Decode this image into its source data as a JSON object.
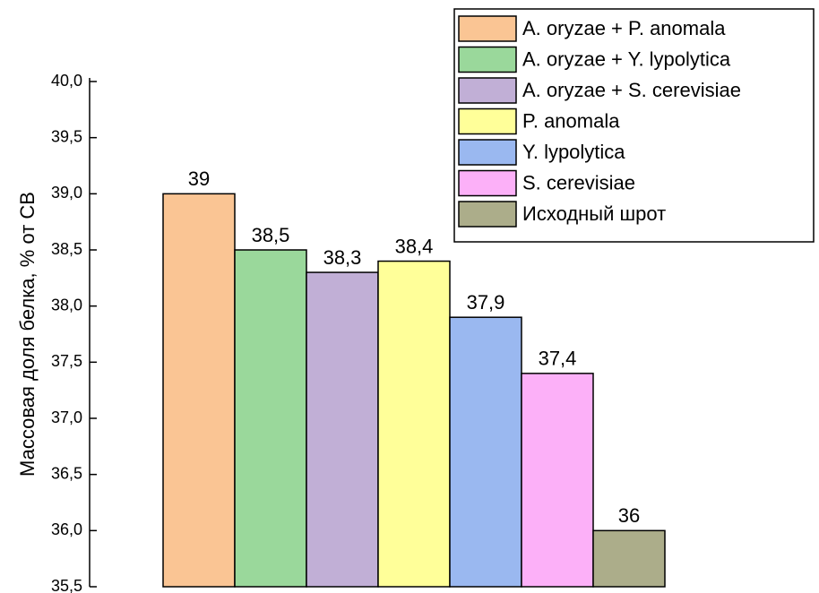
{
  "chart_data": {
    "type": "bar",
    "ylabel": "Массовая доля белка, % от СВ",
    "ylim": [
      35.5,
      40.0
    ],
    "yticks": [
      {
        "value": 35.5,
        "label": "35,5"
      },
      {
        "value": 36.0,
        "label": "36,0"
      },
      {
        "value": 36.5,
        "label": "36,5"
      },
      {
        "value": 37.0,
        "label": "37,0"
      },
      {
        "value": 37.5,
        "label": "37,5"
      },
      {
        "value": 38.0,
        "label": "38,0"
      },
      {
        "value": 38.5,
        "label": "38,5"
      },
      {
        "value": 39.0,
        "label": "39,0"
      },
      {
        "value": 39.5,
        "label": "39,5"
      },
      {
        "value": 40.0,
        "label": "40,0"
      }
    ],
    "legend": "upper right",
    "series": [
      {
        "name": "A. oryzae + P. anomala",
        "color": "#fac594",
        "values": [
          39
        ],
        "value_labels": [
          "39"
        ]
      },
      {
        "name": "A. oryzae + Y. lypolytica",
        "color": "#9ad89b",
        "values": [
          38.5
        ],
        "value_labels": [
          "38,5"
        ]
      },
      {
        "name": "A. oryzae + S. cerevisiae",
        "color": "#c1afd6",
        "values": [
          38.3
        ],
        "value_labels": [
          "38,3"
        ]
      },
      {
        "name": "P. anomala",
        "color": "#ffff99",
        "values": [
          38.4
        ],
        "value_labels": [
          "38,4"
        ]
      },
      {
        "name": "Y. lypolytica",
        "color": "#9ab8f0",
        "values": [
          37.9
        ],
        "value_labels": [
          "37,9"
        ]
      },
      {
        "name": "S. cerevisiae",
        "color": "#fcb0f8",
        "values": [
          37.4
        ],
        "value_labels": [
          "37,4"
        ]
      },
      {
        "name": "Исходный шрот",
        "color": "#acad8a",
        "values": [
          36
        ],
        "value_labels": [
          "36"
        ]
      }
    ]
  }
}
